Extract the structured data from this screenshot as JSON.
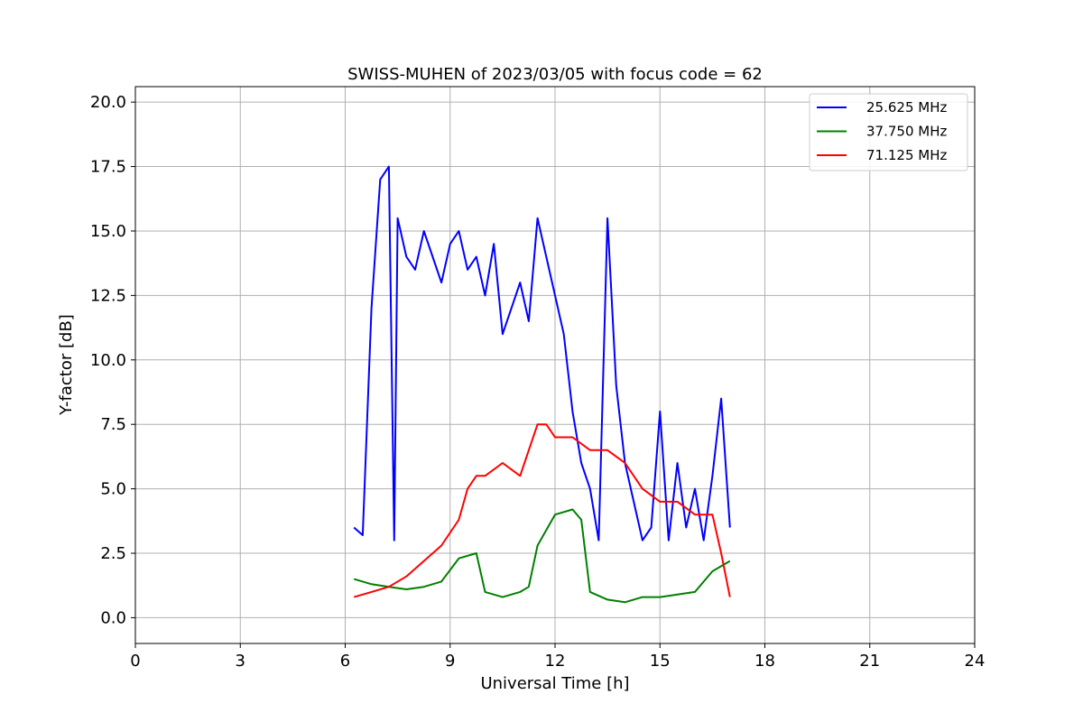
{
  "chart_data": {
    "type": "line",
    "title": "SWISS-MUHEN of 2023/03/05 with focus code = 62",
    "xlabel": "Universal Time [h]",
    "ylabel": "Y-factor [dB]",
    "xlim": [
      0,
      24
    ],
    "ylim": [
      -1,
      20.6
    ],
    "xticks": [
      "0",
      "3",
      "6",
      "9",
      "12",
      "15",
      "18",
      "21",
      "24"
    ],
    "yticks": [
      "0.0",
      "2.5",
      "5.0",
      "7.5",
      "10.0",
      "12.5",
      "15.0",
      "17.5",
      "20.0"
    ],
    "grid": true,
    "legend_position": "top-right",
    "series": [
      {
        "name": "25.625 MHz",
        "color": "#0000ff",
        "x": [
          6.25,
          6.5,
          6.75,
          7.0,
          7.25,
          7.4,
          7.5,
          7.75,
          8.0,
          8.25,
          8.5,
          8.75,
          9.0,
          9.25,
          9.5,
          9.75,
          10.0,
          10.25,
          10.5,
          10.75,
          11.0,
          11.25,
          11.5,
          11.75,
          12.0,
          12.25,
          12.5,
          12.75,
          13.0,
          13.25,
          13.5,
          13.75,
          14.0,
          14.25,
          14.5,
          14.75,
          15.0,
          15.25,
          15.5,
          15.75,
          16.0,
          16.25,
          16.5,
          16.75,
          17.0
        ],
        "values": [
          3.5,
          3.2,
          12.0,
          17.0,
          17.5,
          3.0,
          15.5,
          14.0,
          13.5,
          15.0,
          14.0,
          13.0,
          14.5,
          15.0,
          13.5,
          14.0,
          12.5,
          14.5,
          11.0,
          12.0,
          13.0,
          11.5,
          15.5,
          14.0,
          12.5,
          11.0,
          8.0,
          6.0,
          5.0,
          3.0,
          15.5,
          9.0,
          6.0,
          4.5,
          3.0,
          3.5,
          8.0,
          3.0,
          6.0,
          3.5,
          5.0,
          3.0,
          5.5,
          8.5,
          3.5
        ]
      },
      {
        "name": "37.750 MHz",
        "color": "#008000",
        "x": [
          6.25,
          6.75,
          7.25,
          7.75,
          8.25,
          8.75,
          9.25,
          9.75,
          10.0,
          10.5,
          11.0,
          11.25,
          11.5,
          12.0,
          12.5,
          12.75,
          13.0,
          13.5,
          14.0,
          14.5,
          15.0,
          15.5,
          16.0,
          16.5,
          17.0
        ],
        "values": [
          1.5,
          1.3,
          1.2,
          1.1,
          1.2,
          1.4,
          2.3,
          2.5,
          1.0,
          0.8,
          1.0,
          1.2,
          2.8,
          4.0,
          4.2,
          3.8,
          1.0,
          0.7,
          0.6,
          0.8,
          0.8,
          0.9,
          1.0,
          1.8,
          2.2
        ]
      },
      {
        "name": "71.125 MHz",
        "color": "#ff0000",
        "x": [
          6.25,
          6.75,
          7.25,
          7.75,
          8.25,
          8.75,
          9.25,
          9.5,
          9.75,
          10.0,
          10.5,
          11.0,
          11.5,
          11.75,
          12.0,
          12.5,
          13.0,
          13.5,
          14.0,
          14.5,
          15.0,
          15.5,
          16.0,
          16.5,
          16.75,
          17.0
        ],
        "values": [
          0.8,
          1.0,
          1.2,
          1.6,
          2.2,
          2.8,
          3.8,
          5.0,
          5.5,
          5.5,
          6.0,
          5.5,
          7.5,
          7.5,
          7.0,
          7.0,
          6.5,
          6.5,
          6.0,
          5.0,
          4.5,
          4.5,
          4.0,
          4.0,
          2.5,
          0.8
        ]
      }
    ]
  }
}
